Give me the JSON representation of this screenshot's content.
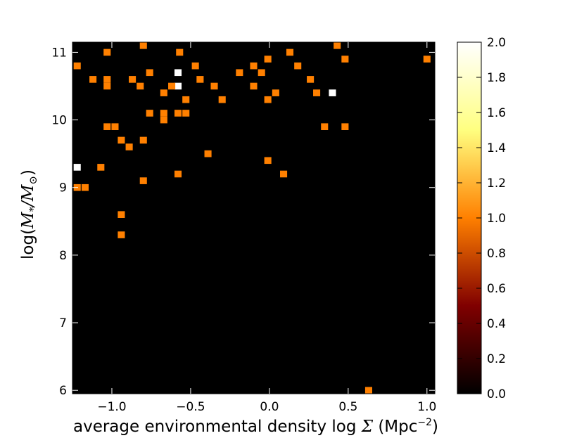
{
  "chart_data": {
    "type": "heatmap",
    "xlabel_text": "average environmental density log",
    "xlabel_symbol": "Σ",
    "xlabel_unit": "(Mpc",
    "xlabel_unit_exp": "−2",
    "xlabel_unit_close": ")",
    "ylabel_prefix": "log(",
    "ylabel_M": "M",
    "ylabel_star": "*",
    "ylabel_slash": "/",
    "ylabel_sun": "⊙",
    "ylabel_close": ")",
    "xlim": [
      -1.25,
      1.05
    ],
    "ylim": [
      5.95,
      11.15
    ],
    "x_ticks": [
      -1.0,
      -0.5,
      0.0,
      0.5,
      1.0
    ],
    "x_tick_labels": [
      "−1.0",
      "−0.5",
      "0.0",
      "0.5",
      "1.0"
    ],
    "y_ticks": [
      6,
      7,
      8,
      9,
      10,
      11
    ],
    "y_tick_labels": [
      "6",
      "7",
      "8",
      "9",
      "10",
      "11"
    ],
    "bin_width": 0.045,
    "bin_height": 0.1,
    "background_value": 0,
    "colorbar": {
      "min": 0.0,
      "max": 2.0,
      "ticks": [
        0.0,
        0.2,
        0.4,
        0.6,
        0.8,
        1.0,
        1.2,
        1.4,
        1.6,
        1.8,
        2.0
      ],
      "tick_labels": [
        "0.0",
        "0.2",
        "0.4",
        "0.6",
        "0.8",
        "1.0",
        "1.2",
        "1.4",
        "1.6",
        "1.8",
        "2.0"
      ],
      "colormap": "afmhot"
    },
    "cells": [
      {
        "x": -1.22,
        "y": 10.8,
        "v": 1
      },
      {
        "x": -1.03,
        "y": 11.0,
        "v": 1
      },
      {
        "x": -0.8,
        "y": 11.1,
        "v": 1
      },
      {
        "x": -0.57,
        "y": 11.0,
        "v": 1
      },
      {
        "x": -0.58,
        "y": 10.7,
        "v": 2
      },
      {
        "x": -0.47,
        "y": 10.8,
        "v": 1
      },
      {
        "x": -0.44,
        "y": 10.6,
        "v": 1
      },
      {
        "x": -0.58,
        "y": 10.5,
        "v": 2
      },
      {
        "x": -0.53,
        "y": 10.3,
        "v": 1
      },
      {
        "x": -0.35,
        "y": 10.5,
        "v": 1
      },
      {
        "x": -0.3,
        "y": 10.3,
        "v": 1
      },
      {
        "x": -0.19,
        "y": 10.7,
        "v": 1
      },
      {
        "x": -0.1,
        "y": 10.8,
        "v": 1
      },
      {
        "x": -0.05,
        "y": 10.7,
        "v": 1
      },
      {
        "x": -0.1,
        "y": 10.5,
        "v": 1
      },
      {
        "x": -0.01,
        "y": 10.9,
        "v": 1
      },
      {
        "x": 0.13,
        "y": 11.0,
        "v": 1
      },
      {
        "x": 0.18,
        "y": 10.8,
        "v": 1
      },
      {
        "x": 0.43,
        "y": 11.1,
        "v": 1
      },
      {
        "x": 0.48,
        "y": 10.9,
        "v": 1
      },
      {
        "x": 1.0,
        "y": 10.9,
        "v": 1
      },
      {
        "x": 0.26,
        "y": 10.6,
        "v": 1
      },
      {
        "x": 0.3,
        "y": 10.4,
        "v": 1
      },
      {
        "x": 0.4,
        "y": 10.4,
        "v": 2
      },
      {
        "x": 0.04,
        "y": 10.4,
        "v": 1
      },
      {
        "x": -0.01,
        "y": 10.3,
        "v": 1
      },
      {
        "x": -1.12,
        "y": 10.6,
        "v": 1
      },
      {
        "x": -1.03,
        "y": 10.6,
        "v": 1
      },
      {
        "x": -1.03,
        "y": 10.5,
        "v": 1
      },
      {
        "x": -0.87,
        "y": 10.6,
        "v": 1
      },
      {
        "x": -0.82,
        "y": 10.5,
        "v": 1
      },
      {
        "x": -0.76,
        "y": 10.7,
        "v": 1
      },
      {
        "x": -0.67,
        "y": 10.4,
        "v": 1
      },
      {
        "x": -0.62,
        "y": 10.5,
        "v": 1
      },
      {
        "x": -0.76,
        "y": 10.1,
        "v": 1
      },
      {
        "x": -0.67,
        "y": 10.1,
        "v": 1
      },
      {
        "x": -0.67,
        "y": 10.0,
        "v": 1
      },
      {
        "x": -0.58,
        "y": 10.1,
        "v": 1
      },
      {
        "x": -0.53,
        "y": 10.1,
        "v": 1
      },
      {
        "x": -1.03,
        "y": 9.9,
        "v": 1
      },
      {
        "x": -0.98,
        "y": 9.9,
        "v": 1
      },
      {
        "x": 0.35,
        "y": 9.9,
        "v": 1
      },
      {
        "x": 0.48,
        "y": 9.9,
        "v": 1
      },
      {
        "x": -0.94,
        "y": 9.7,
        "v": 1
      },
      {
        "x": -0.89,
        "y": 9.6,
        "v": 1
      },
      {
        "x": -0.8,
        "y": 9.7,
        "v": 1
      },
      {
        "x": -0.39,
        "y": 9.5,
        "v": 1
      },
      {
        "x": -0.01,
        "y": 9.4,
        "v": 1
      },
      {
        "x": -1.22,
        "y": 9.3,
        "v": 2
      },
      {
        "x": -1.07,
        "y": 9.3,
        "v": 1
      },
      {
        "x": -0.58,
        "y": 9.2,
        "v": 1
      },
      {
        "x": 0.09,
        "y": 9.2,
        "v": 1
      },
      {
        "x": -0.8,
        "y": 9.1,
        "v": 1
      },
      {
        "x": -1.22,
        "y": 9.0,
        "v": 1
      },
      {
        "x": -1.17,
        "y": 9.0,
        "v": 1
      },
      {
        "x": -0.94,
        "y": 8.6,
        "v": 1
      },
      {
        "x": -0.94,
        "y": 8.3,
        "v": 1
      },
      {
        "x": 0.63,
        "y": 6.0,
        "v": 1
      }
    ]
  }
}
